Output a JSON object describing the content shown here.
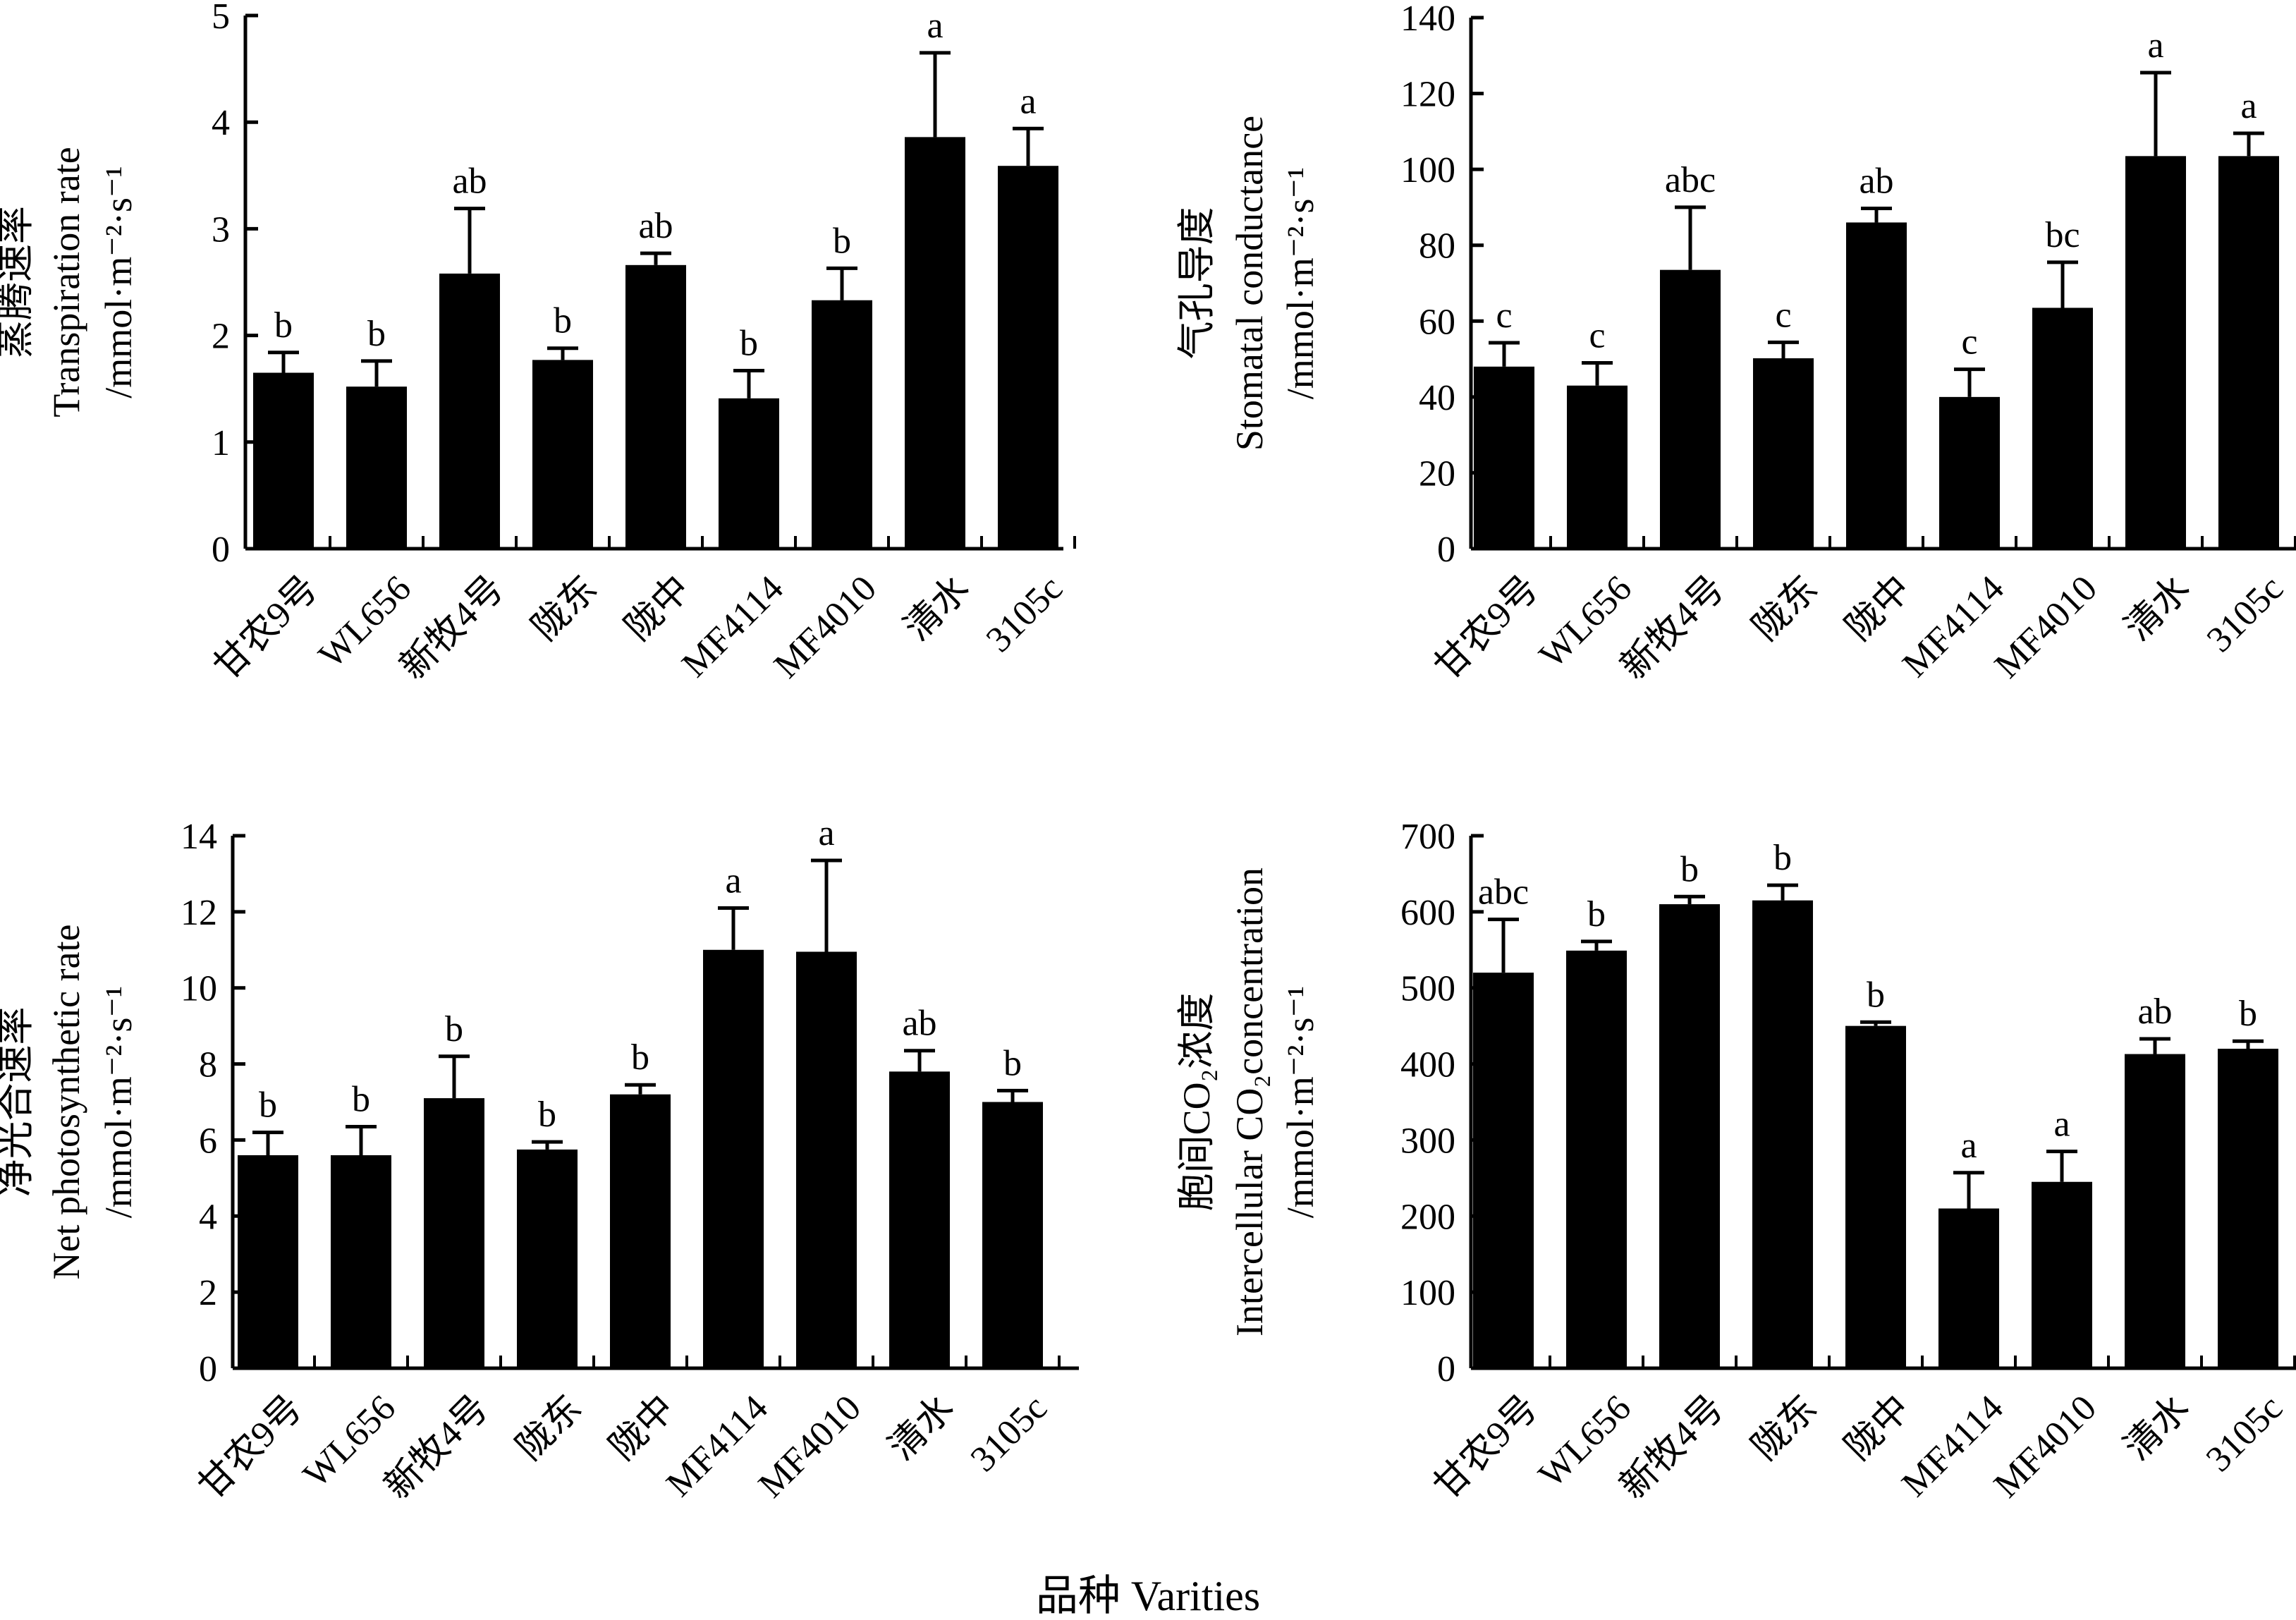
{
  "xlabel": "品种 Varities",
  "chart_data": [
    {
      "type": "bar",
      "ylabel_lines": [
        "蒸腾速率",
        "Transpiration rate",
        "/mmol·m⁻²·s⁻¹"
      ],
      "ylim": [
        0,
        5
      ],
      "yticks": [
        0,
        1,
        2,
        3,
        4,
        5
      ],
      "categories": [
        "甘农9号",
        "WL656",
        "新牧4号",
        "陇东",
        "陇中",
        "MF4114",
        "MF4010",
        "清水",
        "3105c"
      ],
      "values": [
        1.65,
        1.52,
        2.58,
        1.77,
        2.66,
        1.41,
        2.33,
        3.86,
        3.59
      ],
      "errors": [
        0.19,
        0.24,
        0.61,
        0.11,
        0.11,
        0.26,
        0.3,
        0.79,
        0.35
      ],
      "significance": [
        "b",
        "b",
        "ab",
        "b",
        "ab",
        "b",
        "b",
        "a",
        "a"
      ]
    },
    {
      "type": "bar",
      "ylabel_lines": [
        "气孔导度",
        "Stomatal conductance",
        "/mmol·m⁻²·s⁻¹"
      ],
      "ylim": [
        0,
        140
      ],
      "yticks": [
        0,
        20,
        40,
        60,
        80,
        100,
        120,
        140
      ],
      "categories": [
        "甘农9号",
        "WL656",
        "新牧4号",
        "陇东",
        "陇中",
        "MF4114",
        "MF4010",
        "清水",
        "3105c"
      ],
      "values": [
        48,
        43,
        73.5,
        50.2,
        86,
        40,
        63.5,
        103.5,
        103.5
      ],
      "errors": [
        6.3,
        6.0,
        16.5,
        4.2,
        3.7,
        7.3,
        12.0,
        22.0,
        6.0
      ],
      "significance": [
        "c",
        "c",
        "abc",
        "c",
        "ab",
        "c",
        "bc",
        "a",
        "a"
      ]
    },
    {
      "type": "bar",
      "ylabel_lines": [
        "净光合速率",
        "Net photosynthetic rate",
        "/mmol·m⁻²·s⁻¹"
      ],
      "ylim": [
        0,
        14
      ],
      "yticks": [
        0,
        2,
        4,
        6,
        8,
        10,
        12,
        14
      ],
      "categories": [
        "甘农9号",
        "WL656",
        "新牧4号",
        "陇东",
        "陇中",
        "MF4114",
        "MF4010",
        "清水",
        "3105c"
      ],
      "values": [
        5.6,
        5.6,
        7.1,
        5.75,
        7.2,
        11.0,
        10.95,
        7.8,
        7.0
      ],
      "errors": [
        0.6,
        0.75,
        1.1,
        0.2,
        0.25,
        1.1,
        2.4,
        0.55,
        0.3
      ],
      "significance": [
        "b",
        "b",
        "b",
        "b",
        "b",
        "a",
        "a",
        "ab",
        "b"
      ]
    },
    {
      "type": "bar",
      "ylabel_lines": [
        "胞间CO₂浓度",
        "Intercellular CO₂concentration",
        "/mmol·m⁻²·s⁻¹"
      ],
      "ylim": [
        0,
        700
      ],
      "yticks": [
        0,
        100,
        200,
        300,
        400,
        500,
        600,
        700
      ],
      "categories": [
        "甘农9号",
        "WL656",
        "新牧4号",
        "陇东",
        "陇中",
        "MF4114",
        "MF4010",
        "清水",
        "3105c"
      ],
      "values": [
        520,
        549,
        610,
        615,
        450,
        210,
        245,
        413,
        420
      ],
      "errors": [
        70,
        12,
        10,
        20,
        5,
        47,
        40,
        20,
        10
      ],
      "significance": [
        "abc",
        "b",
        "b",
        "b",
        "b",
        "a",
        "a",
        "ab",
        "b"
      ]
    }
  ]
}
